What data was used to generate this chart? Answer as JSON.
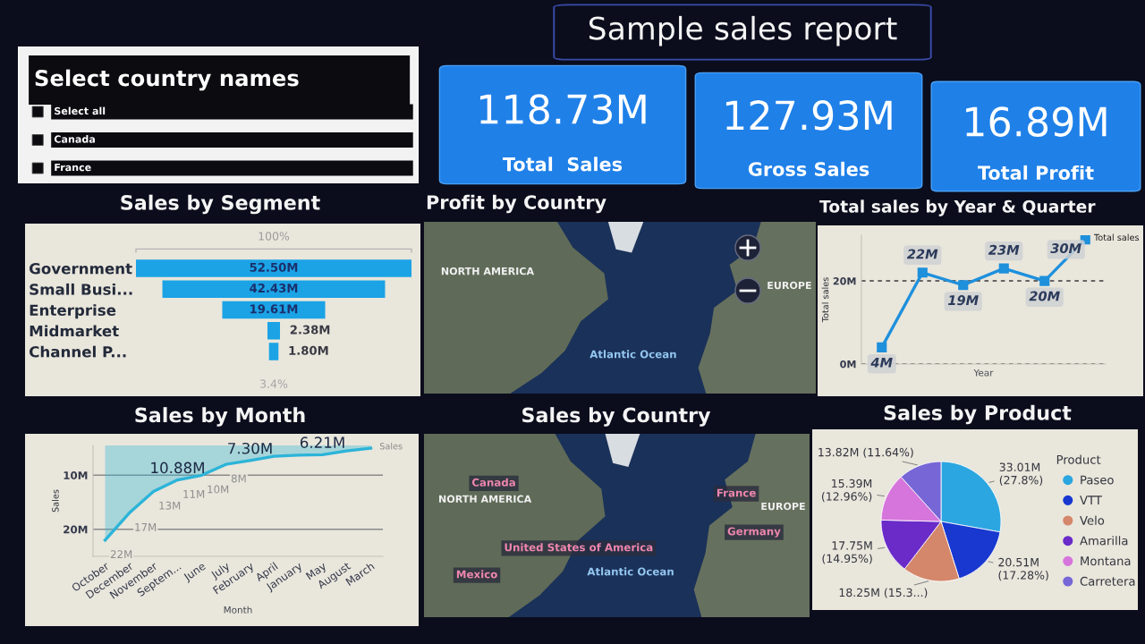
{
  "chart_data": [
    {
      "type": "other",
      "title": "Sample sales report"
    },
    {
      "type": "other",
      "title": "Select country names",
      "annotations": [
        "Select all",
        "Canada",
        "France"
      ]
    },
    {
      "type": "other",
      "title": "Total  Sales",
      "annotations": [
        "118.73M"
      ]
    },
    {
      "type": "other",
      "title": "Gross Sales",
      "annotations": [
        "127.93M"
      ]
    },
    {
      "type": "other",
      "title": "Total Profit",
      "annotations": [
        "16.89M"
      ]
    },
    {
      "type": "other",
      "title": "Sales by Segment",
      "categories": [
        "Government",
        "Small Busi...",
        "Enterprise",
        "Midmarket",
        "Channel P..."
      ],
      "values": [
        52.5,
        42.43,
        19.61,
        2.38,
        1.8
      ],
      "value_labels": [
        "52.50M",
        "42.43M",
        "19.61M",
        "2.38M",
        "1.80M"
      ],
      "color": "#1ba3e6",
      "annotations": [
        "100%",
        "3.4%"
      ]
    },
    {
      "type": "other",
      "title": "Profit by Country",
      "annotations": [
        "NORTH AMERICA",
        "EUROPE",
        "Atlantic Ocean"
      ]
    },
    {
      "type": "line",
      "title": "Total sales by Year & Quarter",
      "xlabel": "Year",
      "ylabel": "Total sales",
      "categories": [
        null,
        null,
        null,
        null,
        null,
        null
      ],
      "series": [
        {
          "name": "Total sales",
          "color": "#1e90dc",
          "values": [
            4,
            22,
            19,
            23,
            20,
            30
          ],
          "value_labels": [
            "4M",
            "22M",
            "19M",
            "23M",
            "20M",
            "30M"
          ]
        }
      ],
      "ylim": [
        0,
        31
      ],
      "yticks": [
        {
          "value": 0,
          "label": "0M"
        },
        {
          "value": 20,
          "label": "20M"
        }
      ],
      "grid": "y",
      "marker": "square",
      "tick_labels": "y"
    },
    {
      "type": "area",
      "title": "Sales by Month",
      "xlabel": "Month",
      "ylabel": "Sales",
      "categories": [
        "October",
        "December",
        "November",
        "Septem...",
        "June",
        "July",
        "February",
        "April",
        "January",
        "May",
        "August",
        "March"
      ],
      "series": [
        {
          "name": "Sales",
          "color": "#2cb4d8",
          "values": [
            22,
            17,
            13,
            10.88,
            10,
            8,
            7.3,
            6.5,
            6.3,
            6.21,
            5.5,
            5.0
          ],
          "value_labels": [
            "22M",
            "17M",
            "13M",
            "11M",
            "10M",
            "8M",
            null,
            null,
            null,
            null,
            null,
            null
          ]
        }
      ],
      "ylim": [
        25,
        4.5
      ],
      "yticks": [
        {
          "value": 10,
          "label": "10M"
        },
        {
          "value": 20,
          "label": "20M"
        }
      ],
      "grid": "y",
      "annotations": [
        {
          "text": "10.88M",
          "x": "Septem...",
          "y": 10.88
        },
        {
          "text": "7.30M",
          "x": "February",
          "y": 7.3
        },
        {
          "text": "6.21M",
          "x": "May",
          "y": 6.21
        }
      ]
    },
    {
      "type": "other",
      "title": "Sales by Country",
      "annotations": [
        "Canada",
        "NORTH AMERICA",
        "France",
        "EUROPE",
        "Germany",
        "United States of America",
        "Mexico",
        "Atlantic Ocean"
      ]
    },
    {
      "type": "pie",
      "title": "Sales by Product",
      "categories": [
        "Paseo",
        "VTT",
        "Velo",
        "Amarilla",
        "Montana",
        "Carretera"
      ],
      "values": [
        27.8,
        17.28,
        15.3,
        14.95,
        12.96,
        11.64
      ],
      "colors": [
        "#2ba6e0",
        "#1838d0",
        "#d4876a",
        "#6a2bc9",
        "#d675dc",
        "#7766d6"
      ],
      "value_labels": [
        "33.01M\n(27.8%)",
        "20.51M\n(17.28%)",
        "18.25M (15.3...)",
        "17.75M\n(14.95%)",
        "15.39M\n(12.96%)",
        "13.82M (11.64%)"
      ],
      "legend": "right",
      "legend_title": "Product"
    }
  ]
}
